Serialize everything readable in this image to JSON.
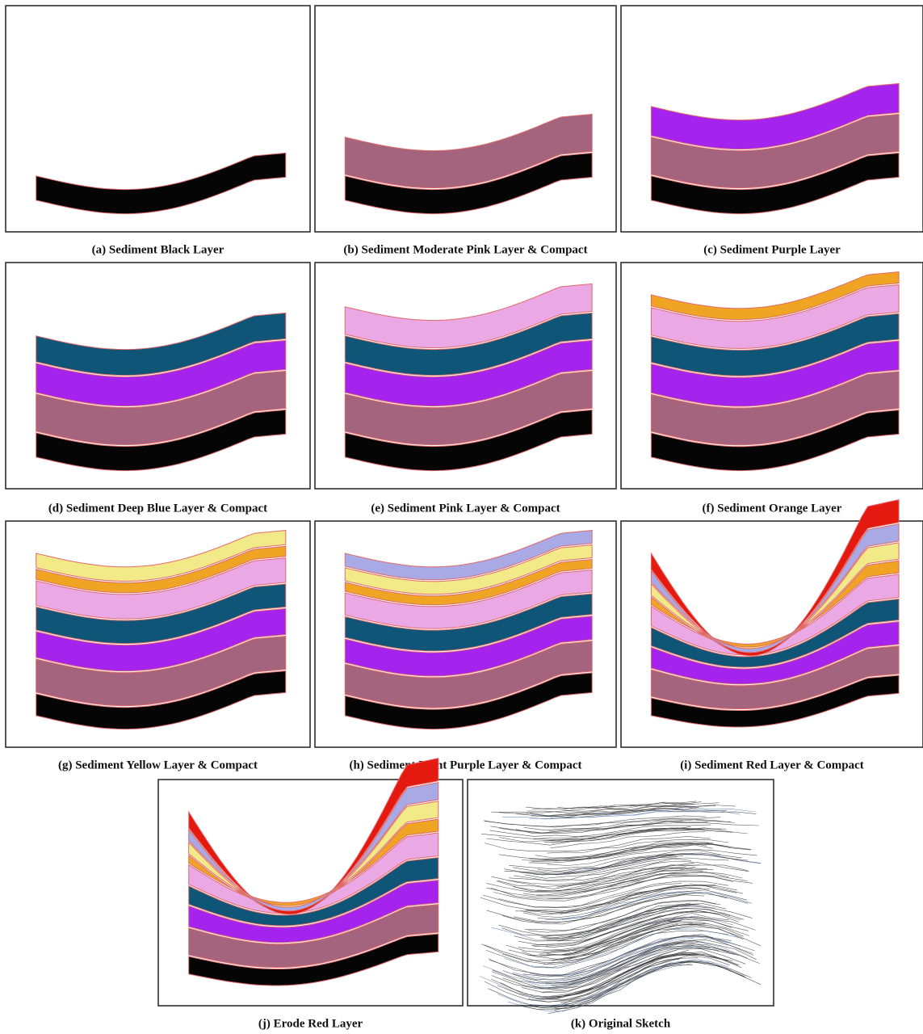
{
  "figure": {
    "panels": [
      {
        "caption": "(a) Sediment Black Layer"
      },
      {
        "caption": "(b) Sediment Moderate Pink Layer & Compact"
      },
      {
        "caption": "(c) Sediment Purple Layer"
      },
      {
        "caption": "(d) Sediment Deep Blue Layer & Compact"
      },
      {
        "caption": "(e) Sediment Pink Layer & Compact"
      },
      {
        "caption": "(f) Sediment Orange Layer"
      },
      {
        "caption": "(g) Sediment Yellow Layer & Compact"
      },
      {
        "caption": "(h) Sediment Light Purple Layer & Compact"
      },
      {
        "caption": "(i) Sediment Red Layer & Compact"
      },
      {
        "caption": "(j) Erode Red Layer"
      },
      {
        "caption": "(k) Original Sketch"
      }
    ]
  }
}
